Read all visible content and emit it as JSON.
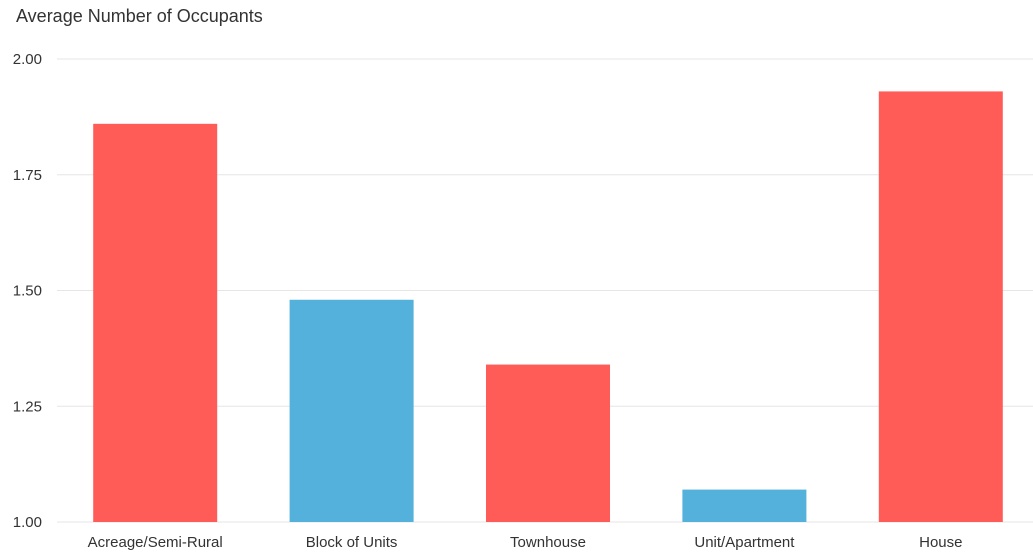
{
  "chart_data": {
    "type": "bar",
    "title": "Average Number of Occupants",
    "categories": [
      "Acreage/Semi-Rural",
      "Block of Units",
      "Townhouse",
      "Unit/Apartment",
      "House"
    ],
    "values": [
      1.86,
      1.48,
      1.34,
      1.07,
      1.93
    ],
    "bar_colors": [
      "#ff5c57",
      "#53b1db",
      "#ff5c57",
      "#53b1db",
      "#ff5c57"
    ],
    "ylim": [
      1.0,
      2.0
    ],
    "yticks": [
      "1.00",
      "1.25",
      "1.50",
      "1.75",
      "2.00"
    ],
    "grid": true,
    "xlabel": "",
    "ylabel": ""
  }
}
